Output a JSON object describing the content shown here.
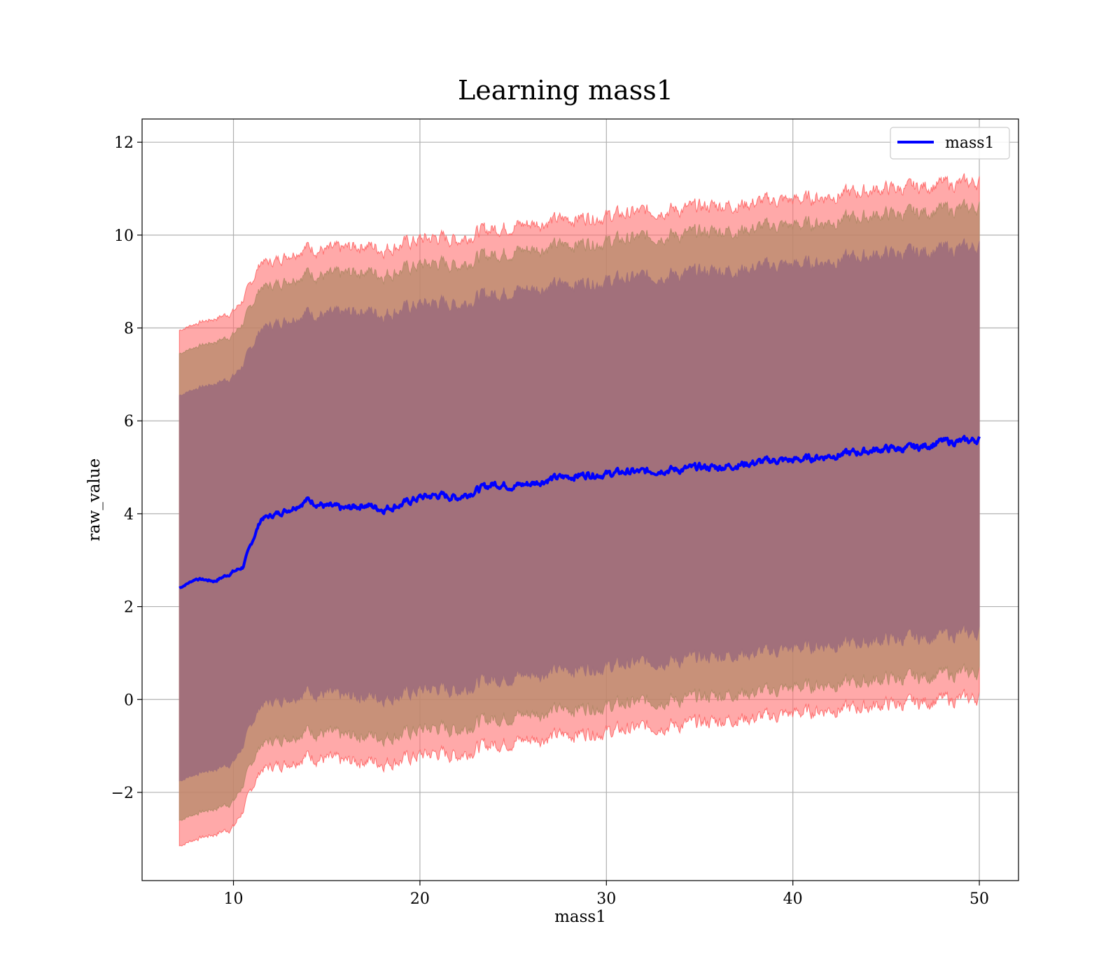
{
  "chart_data": {
    "type": "area",
    "title": "Learning mass1",
    "xlabel": "mass1",
    "ylabel": "raw_value",
    "xlim": [
      5.1,
      52.1
    ],
    "ylim": [
      -3.9,
      12.5
    ],
    "xticks": [
      10,
      20,
      30,
      40,
      50
    ],
    "xtick_labels": [
      "10",
      "20",
      "30",
      "40",
      "50"
    ],
    "yticks": [
      -2,
      0,
      2,
      4,
      6,
      8,
      10,
      12
    ],
    "ytick_labels": [
      "−2",
      "0",
      "2",
      "4",
      "6",
      "8",
      "10",
      "12"
    ],
    "grid": true,
    "legend": {
      "position": "top-right",
      "entries": [
        "mass1"
      ]
    },
    "colors": {
      "line": "#0000ff",
      "band_outer": "#ff6f6f",
      "band_middle": "#b58a6a",
      "band_inner": "#a06f7b"
    },
    "x": [
      7.1,
      8,
      9,
      10,
      10.5,
      11,
      11.5,
      12,
      13,
      14,
      15,
      16,
      17,
      18,
      19,
      20,
      21,
      22,
      23,
      24,
      25,
      26,
      27,
      28,
      29,
      30,
      31,
      32,
      33,
      34,
      35,
      36,
      37,
      38,
      39,
      40,
      41,
      42,
      43,
      44,
      45,
      46,
      47,
      48,
      49,
      50
    ],
    "series": [
      {
        "name": "mass1",
        "values": [
          2.4,
          2.6,
          2.55,
          2.75,
          2.85,
          3.4,
          3.9,
          3.95,
          4.1,
          4.3,
          4.15,
          4.1,
          4.2,
          4.1,
          4.2,
          4.35,
          4.4,
          4.35,
          4.5,
          4.65,
          4.6,
          4.65,
          4.75,
          4.8,
          4.85,
          4.85,
          4.9,
          4.9,
          4.95,
          4.95,
          5.0,
          5.0,
          5.05,
          5.1,
          5.15,
          5.15,
          5.2,
          5.25,
          5.3,
          5.35,
          5.4,
          5.4,
          5.45,
          5.55,
          5.55,
          5.6
        ]
      }
    ],
    "bands": [
      {
        "level": "outer",
        "upper": [
          7.95,
          8.1,
          8.2,
          8.35,
          8.6,
          9.0,
          9.45,
          9.4,
          9.6,
          9.75,
          9.65,
          9.7,
          9.8,
          9.7,
          9.8,
          9.9,
          9.95,
          9.9,
          10.05,
          10.15,
          10.2,
          10.25,
          10.3,
          10.35,
          10.4,
          10.4,
          10.45,
          10.5,
          10.55,
          10.55,
          10.6,
          10.65,
          10.65,
          10.7,
          10.75,
          10.75,
          10.8,
          10.85,
          10.9,
          10.95,
          11.0,
          11.0,
          11.05,
          11.1,
          11.1,
          11.15
        ],
        "lower": [
          -3.15,
          -3.0,
          -2.9,
          -2.75,
          -2.4,
          -1.9,
          -1.5,
          -1.45,
          -1.35,
          -1.2,
          -1.3,
          -1.35,
          -1.3,
          -1.35,
          -1.3,
          -1.2,
          -1.15,
          -1.2,
          -1.05,
          -0.95,
          -0.9,
          -0.85,
          -0.8,
          -0.75,
          -0.7,
          -0.7,
          -0.65,
          -0.6,
          -0.55,
          -0.55,
          -0.5,
          -0.45,
          -0.4,
          -0.4,
          -0.35,
          -0.3,
          -0.25,
          -0.2,
          -0.2,
          -0.15,
          -0.1,
          -0.1,
          -0.05,
          0.0,
          0.0,
          0.05
        ]
      },
      {
        "level": "middle",
        "upper": [
          7.45,
          7.6,
          7.7,
          7.85,
          8.1,
          8.5,
          8.9,
          8.9,
          9.05,
          9.2,
          9.1,
          9.15,
          9.25,
          9.15,
          9.25,
          9.35,
          9.4,
          9.35,
          9.5,
          9.6,
          9.65,
          9.7,
          9.75,
          9.8,
          9.85,
          9.85,
          9.9,
          9.95,
          10.0,
          10.0,
          10.05,
          10.1,
          10.1,
          10.15,
          10.2,
          10.2,
          10.25,
          10.3,
          10.35,
          10.4,
          10.45,
          10.45,
          10.5,
          10.55,
          10.55,
          10.6
        ],
        "lower": [
          -2.6,
          -2.45,
          -2.35,
          -2.2,
          -1.85,
          -1.35,
          -0.95,
          -0.9,
          -0.8,
          -0.65,
          -0.75,
          -0.8,
          -0.75,
          -0.8,
          -0.75,
          -0.65,
          -0.6,
          -0.65,
          -0.5,
          -0.4,
          -0.35,
          -0.3,
          -0.25,
          -0.2,
          -0.15,
          -0.15,
          -0.1,
          -0.05,
          0.0,
          0.0,
          0.05,
          0.1,
          0.15,
          0.15,
          0.2,
          0.25,
          0.3,
          0.35,
          0.35,
          0.4,
          0.45,
          0.45,
          0.5,
          0.55,
          0.55,
          0.6
        ]
      },
      {
        "level": "inner",
        "upper": [
          6.55,
          6.7,
          6.8,
          6.95,
          7.2,
          7.6,
          8.0,
          8.05,
          8.2,
          8.35,
          8.25,
          8.3,
          8.4,
          8.3,
          8.4,
          8.5,
          8.55,
          8.5,
          8.65,
          8.75,
          8.8,
          8.85,
          8.9,
          8.95,
          9.0,
          9.0,
          9.05,
          9.1,
          9.15,
          9.15,
          9.2,
          9.25,
          9.25,
          9.3,
          9.35,
          9.35,
          9.4,
          9.45,
          9.5,
          9.55,
          9.6,
          9.6,
          9.65,
          9.7,
          9.7,
          9.75
        ],
        "lower": [
          -1.75,
          -1.6,
          -1.5,
          -1.35,
          -1.0,
          -0.5,
          -0.1,
          -0.05,
          0.05,
          0.2,
          0.1,
          0.05,
          0.1,
          0.05,
          0.1,
          0.2,
          0.25,
          0.2,
          0.35,
          0.45,
          0.5,
          0.55,
          0.6,
          0.65,
          0.7,
          0.7,
          0.75,
          0.8,
          0.85,
          0.85,
          0.9,
          0.95,
          1.0,
          1.0,
          1.05,
          1.1,
          1.15,
          1.2,
          1.2,
          1.25,
          1.3,
          1.3,
          1.35,
          1.4,
          1.4,
          1.45
        ]
      }
    ]
  }
}
